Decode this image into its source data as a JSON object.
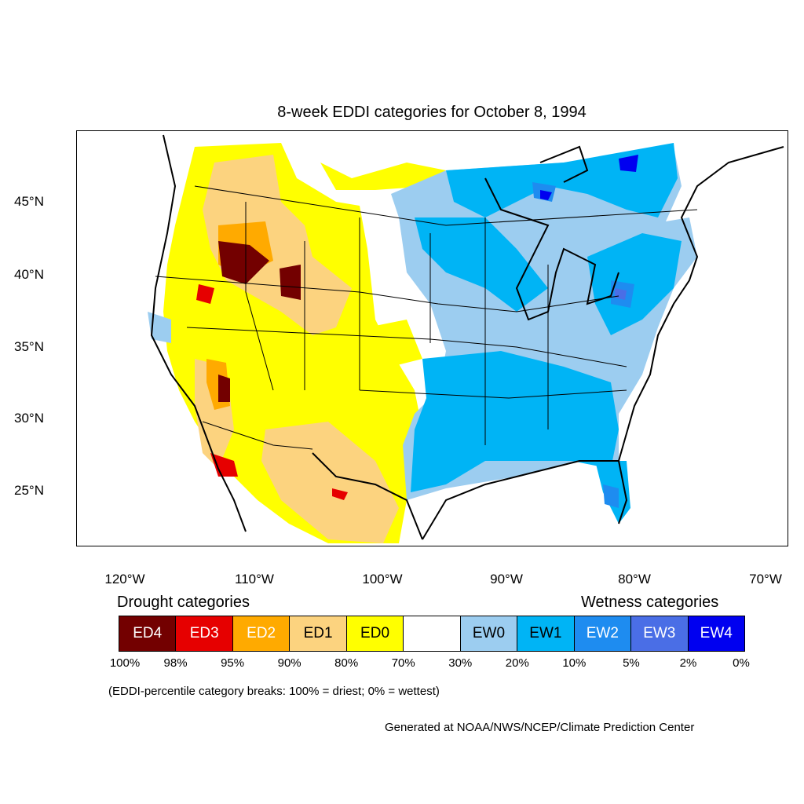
{
  "title": "8-week EDDI categories for October 8, 1994",
  "lat_labels": [
    "45°N",
    "40°N",
    "35°N",
    "30°N",
    "25°N"
  ],
  "lon_labels": [
    "120°W",
    "110°W",
    "100°W",
    "90°W",
    "80°W",
    "70°W"
  ],
  "legend": {
    "drought_heading": "Drought categories",
    "wetness_heading": "Wetness categories",
    "categories": [
      {
        "label": "ED4",
        "color": "#730000",
        "text_color": "#ffffff"
      },
      {
        "label": "ED3",
        "color": "#e60000",
        "text_color": "#ffffff"
      },
      {
        "label": "ED2",
        "color": "#ffaa00",
        "text_color": "#ffffff"
      },
      {
        "label": "ED1",
        "color": "#fcd37f",
        "text_color": "#000000"
      },
      {
        "label": "ED0",
        "color": "#ffff00",
        "text_color": "#000000"
      },
      {
        "label": "",
        "color": "#ffffff",
        "text_color": "#000000"
      },
      {
        "label": "EW0",
        "color": "#9ccdf0",
        "text_color": "#000000"
      },
      {
        "label": "EW1",
        "color": "#00b4f5",
        "text_color": "#000000"
      },
      {
        "label": "EW2",
        "color": "#1e8cf0",
        "text_color": "#ffffff"
      },
      {
        "label": "EW3",
        "color": "#4a6ee6",
        "text_color": "#ffffff"
      },
      {
        "label": "EW4",
        "color": "#0000f0",
        "text_color": "#ffffff"
      }
    ],
    "percent_breaks": [
      "100%",
      "98%",
      "95%",
      "90%",
      "80%",
      "70%",
      "30%",
      "20%",
      "10%",
      "5%",
      "2%",
      "0%"
    ],
    "note": "(EDDI-percentile category breaks: 100% = driest; 0% = wettest)"
  },
  "credit": "Generated at NOAA/NWS/NCEP/Climate Prediction Center"
}
